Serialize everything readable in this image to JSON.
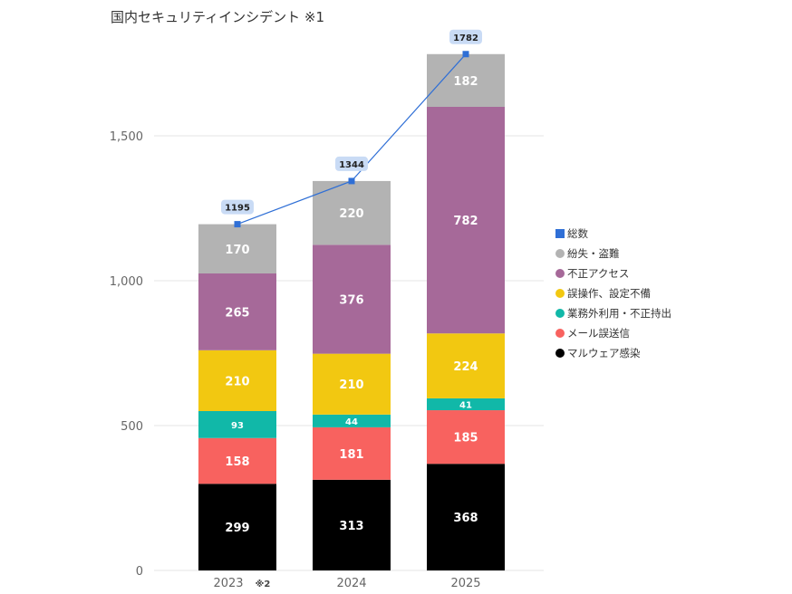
{
  "chart_data": {
    "type": "bar",
    "stacked": true,
    "title": "国内セキュリティインシデント ※1",
    "categories": [
      "2023",
      "2024",
      "2025"
    ],
    "category_notes": [
      "※2",
      "",
      ""
    ],
    "ylim": [
      0,
      1950
    ],
    "yticks": [
      0,
      500,
      1000,
      1500
    ],
    "ytick_labels": [
      "0",
      "500",
      "1,000",
      "1,500"
    ],
    "grid": true,
    "legend_position": "right",
    "series": [
      {
        "name": "マルウェア感染",
        "color": "#000000",
        "values": [
          299,
          313,
          368
        ]
      },
      {
        "name": "メール誤送信",
        "color": "#f8625f",
        "values": [
          158,
          181,
          185
        ]
      },
      {
        "name": "業務外利用・不正持出",
        "color": "#11b8a8",
        "values": [
          93,
          44,
          41
        ]
      },
      {
        "name": "誤操作、設定不備",
        "color": "#f2c811",
        "values": [
          210,
          210,
          224
        ]
      },
      {
        "name": "不正アクセス",
        "color": "#a66999",
        "values": [
          265,
          376,
          782
        ]
      },
      {
        "name": "紛失・盗難",
        "color": "#b3b3b3",
        "values": [
          170,
          220,
          182
        ]
      }
    ],
    "total_line": {
      "name": "総数",
      "color": "#2f6fd6",
      "values": [
        1195,
        1344,
        1782
      ]
    }
  }
}
